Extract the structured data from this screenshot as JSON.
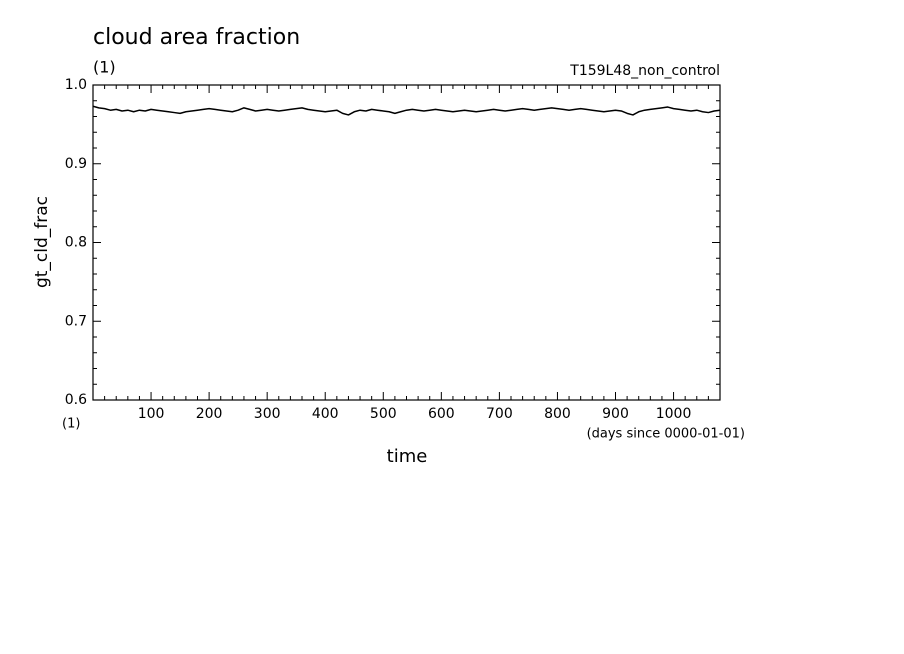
{
  "chart_data": {
    "type": "line",
    "title": "cloud area fraction",
    "subtitle": "T159L48_non_control",
    "y_units": "(1)",
    "x_units_left": "(1)",
    "x_units": "(days since 0000-01-01)",
    "xlabel": "time",
    "ylabel": "gt_cld_frac",
    "xlim": [
      0,
      1080
    ],
    "ylim": [
      0.6,
      1.0
    ],
    "xticks": [
      100,
      200,
      300,
      400,
      500,
      600,
      700,
      800,
      900,
      1000
    ],
    "yticks": [
      0.6,
      0.7,
      0.8,
      0.9,
      {
        "value": 1.0,
        "label": "1.0"
      }
    ],
    "xminorticks": [
      20,
      40,
      60,
      80,
      120,
      140,
      160,
      180,
      220,
      240,
      260,
      280,
      320,
      340,
      360,
      380,
      420,
      440,
      460,
      480,
      520,
      540,
      560,
      580,
      620,
      640,
      660,
      680,
      720,
      740,
      760,
      780,
      820,
      840,
      860,
      880,
      920,
      940,
      960,
      980,
      1020,
      1040,
      1060
    ],
    "yminorticks": [
      0.62,
      0.64,
      0.66,
      0.68,
      0.72,
      0.74,
      0.76,
      0.78,
      0.82,
      0.84,
      0.86,
      0.88,
      0.92,
      0.94,
      0.96,
      0.98
    ],
    "x": [
      0,
      10,
      20,
      30,
      40,
      50,
      60,
      70,
      80,
      90,
      100,
      110,
      120,
      130,
      140,
      150,
      160,
      170,
      180,
      190,
      200,
      210,
      220,
      230,
      240,
      250,
      260,
      270,
      280,
      290,
      300,
      310,
      320,
      330,
      340,
      350,
      360,
      370,
      380,
      390,
      400,
      410,
      420,
      430,
      440,
      450,
      460,
      470,
      480,
      490,
      500,
      510,
      520,
      530,
      540,
      550,
      560,
      570,
      580,
      590,
      600,
      610,
      620,
      630,
      640,
      650,
      660,
      670,
      680,
      690,
      700,
      710,
      720,
      730,
      740,
      750,
      760,
      770,
      780,
      790,
      800,
      810,
      820,
      830,
      840,
      850,
      860,
      870,
      880,
      890,
      900,
      910,
      920,
      930,
      940,
      950,
      960,
      970,
      980,
      990,
      1000,
      1010,
      1020,
      1030,
      1040,
      1050,
      1060,
      1070,
      1080
    ],
    "series": [
      {
        "color": "#000000",
        "values": [
          0.973,
          0.971,
          0.97,
          0.968,
          0.969,
          0.967,
          0.968,
          0.966,
          0.968,
          0.967,
          0.969,
          0.968,
          0.967,
          0.966,
          0.965,
          0.964,
          0.966,
          0.967,
          0.968,
          0.969,
          0.97,
          0.969,
          0.968,
          0.967,
          0.966,
          0.968,
          0.971,
          0.969,
          0.967,
          0.968,
          0.969,
          0.968,
          0.967,
          0.968,
          0.969,
          0.97,
          0.971,
          0.969,
          0.968,
          0.967,
          0.966,
          0.967,
          0.968,
          0.964,
          0.962,
          0.966,
          0.968,
          0.967,
          0.969,
          0.968,
          0.967,
          0.966,
          0.964,
          0.966,
          0.968,
          0.969,
          0.968,
          0.967,
          0.968,
          0.969,
          0.968,
          0.967,
          0.966,
          0.967,
          0.968,
          0.967,
          0.966,
          0.967,
          0.968,
          0.969,
          0.968,
          0.967,
          0.968,
          0.969,
          0.97,
          0.969,
          0.968,
          0.969,
          0.97,
          0.971,
          0.97,
          0.969,
          0.968,
          0.969,
          0.97,
          0.969,
          0.968,
          0.967,
          0.966,
          0.967,
          0.968,
          0.967,
          0.964,
          0.962,
          0.966,
          0.968,
          0.969,
          0.97,
          0.971,
          0.972,
          0.97,
          0.969,
          0.968,
          0.967,
          0.968,
          0.966,
          0.965,
          0.967,
          0.968
        ]
      }
    ]
  }
}
